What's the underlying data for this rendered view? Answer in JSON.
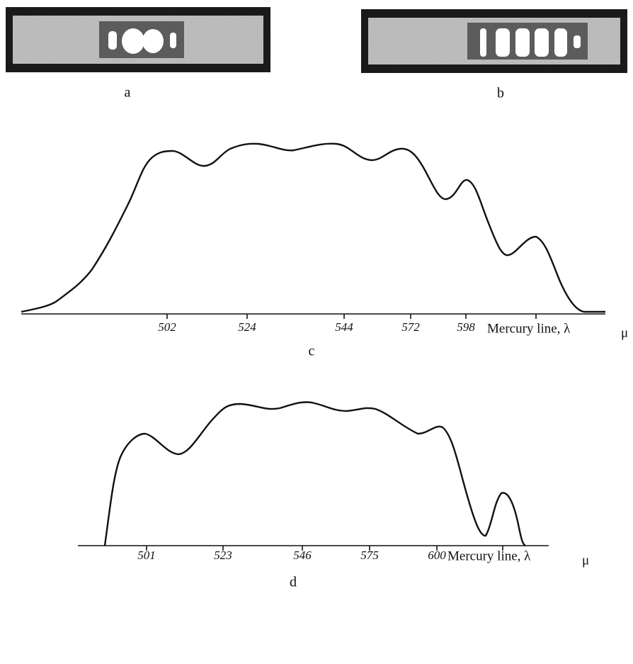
{
  "figure": {
    "panels": [
      {
        "label": "a"
      },
      {
        "label": "b"
      }
    ],
    "plots": [
      {
        "label": "c",
        "ticks": [
          502,
          524,
          544,
          572,
          598
        ],
        "axis_label": "Mercury line, λ",
        "axis_unit": "μ"
      },
      {
        "label": "d",
        "ticks": [
          501,
          523,
          546,
          575,
          600
        ],
        "axis_label": "Mercury line, λ",
        "axis_unit": "μ"
      }
    ]
  }
}
